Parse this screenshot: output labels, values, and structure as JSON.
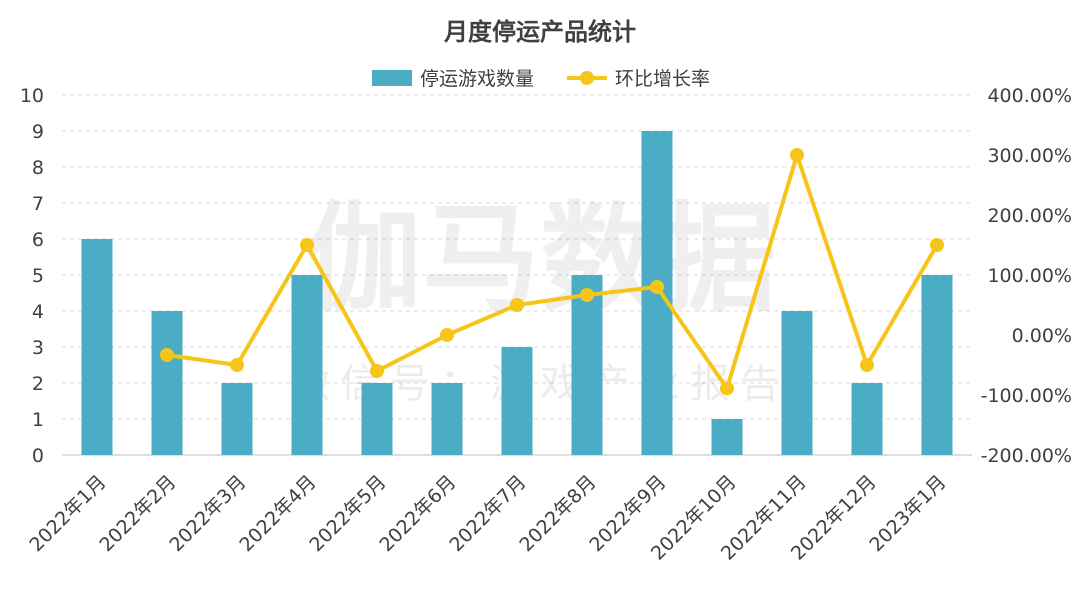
{
  "chart_data": {
    "type": "bar",
    "title": "月度停运产品统计",
    "categories": [
      "2022年1月",
      "2022年2月",
      "2022年3月",
      "2022年4月",
      "2022年5月",
      "2022年6月",
      "2022年7月",
      "2022年8月",
      "2022年9月",
      "2022年10月",
      "2022年11月",
      "2022年12月",
      "2023年1月"
    ],
    "series": [
      {
        "name": "停运游戏数量",
        "type": "bar",
        "axis": "left",
        "color": "#4bacc6",
        "values": [
          6,
          4,
          2,
          5,
          2,
          2,
          3,
          5,
          9,
          1,
          4,
          2,
          5
        ]
      },
      {
        "name": "环比增长率",
        "type": "line",
        "axis": "right",
        "color": "#f5c518",
        "values": [
          null,
          -33.33,
          -50.0,
          150.0,
          -60.0,
          0.0,
          50.0,
          66.67,
          80.0,
          -88.89,
          300.0,
          -50.0,
          150.0
        ]
      }
    ],
    "y_left": {
      "min": 0,
      "max": 10,
      "ticks": [
        "0",
        "1",
        "2",
        "3",
        "4",
        "5",
        "6",
        "7",
        "8",
        "9",
        "10"
      ]
    },
    "y_right": {
      "min": -200,
      "max": 400,
      "ticks": [
        "-200.00%",
        "-100.00%",
        "0.00%",
        "100.00%",
        "200.00%",
        "300.00%",
        "400.00%"
      ]
    },
    "grid": true,
    "legend": "top-center"
  },
  "watermark": {
    "main": "伽马数据",
    "sub": "微信号：游戏产业报告"
  }
}
